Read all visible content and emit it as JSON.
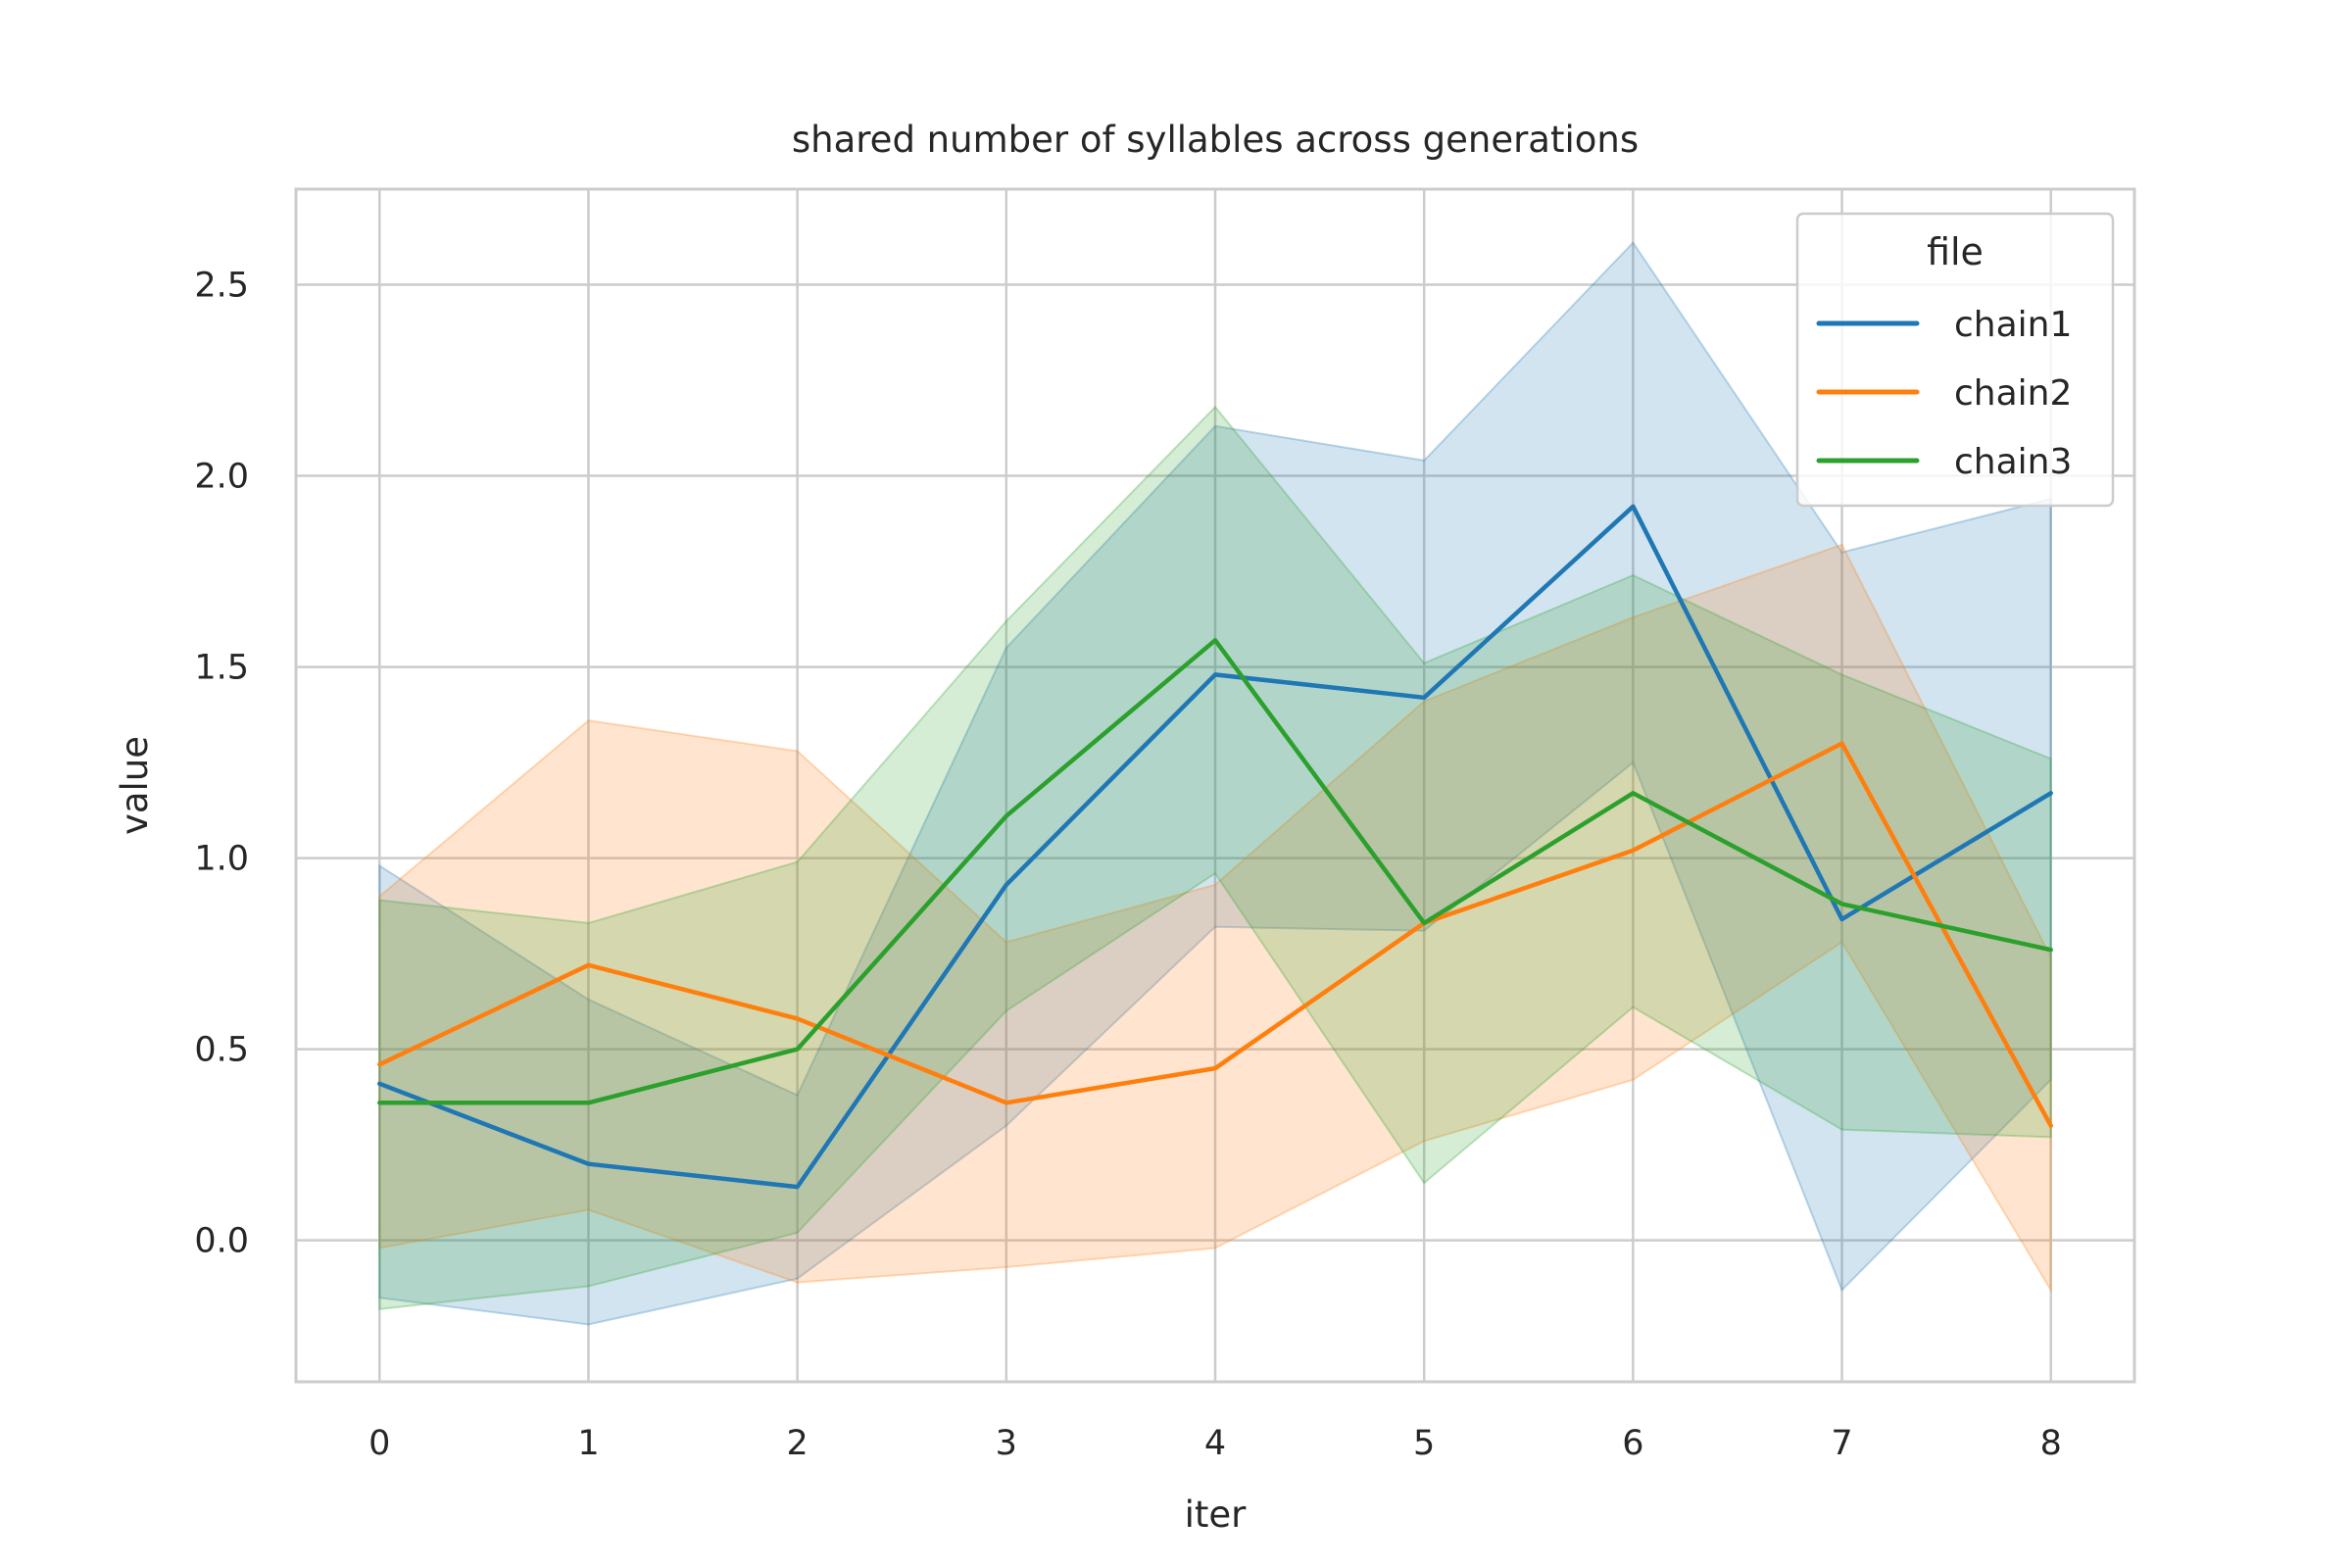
{
  "chart_data": {
    "type": "line",
    "title": "shared number of syllables across generations",
    "xlabel": "iter",
    "ylabel": "value",
    "x": [
      0,
      1,
      2,
      3,
      4,
      5,
      6,
      7,
      8
    ],
    "xticks": [
      "0",
      "1",
      "2",
      "3",
      "4",
      "5",
      "6",
      "7",
      "8"
    ],
    "yticks": [
      0.0,
      0.5,
      1.0,
      1.5,
      2.0,
      2.5
    ],
    "ytick_labels": [
      "0.0",
      "0.5",
      "1.0",
      "1.5",
      "2.0",
      "2.5"
    ],
    "xlim": [
      -0.4,
      8.4
    ],
    "ylim": [
      -0.37,
      2.75
    ],
    "grid": true,
    "legend": {
      "title": "file",
      "position": "upper right"
    },
    "series": [
      {
        "name": "chain1",
        "color": "#1f77b4",
        "values": [
          0.41,
          0.2,
          0.14,
          0.93,
          1.48,
          1.42,
          1.92,
          0.84,
          1.17
        ],
        "ci_lower": [
          -0.15,
          -0.22,
          -0.1,
          0.3,
          0.82,
          0.81,
          1.25,
          -0.13,
          0.42
        ],
        "ci_upper": [
          0.98,
          0.63,
          0.38,
          1.55,
          2.13,
          2.04,
          2.61,
          1.8,
          1.94
        ]
      },
      {
        "name": "chain2",
        "color": "#ff7f0e",
        "values": [
          0.46,
          0.72,
          0.58,
          0.36,
          0.45,
          0.83,
          1.02,
          1.3,
          0.3
        ],
        "ci_lower": [
          -0.02,
          0.08,
          -0.11,
          -0.07,
          -0.02,
          0.26,
          0.42,
          0.78,
          -0.13
        ],
        "ci_upper": [
          0.9,
          1.36,
          1.28,
          0.78,
          0.93,
          1.41,
          1.63,
          1.82,
          0.74
        ]
      },
      {
        "name": "chain3",
        "color": "#2ca02c",
        "values": [
          0.36,
          0.36,
          0.5,
          1.11,
          1.57,
          0.83,
          1.17,
          0.88,
          0.76
        ],
        "ci_lower": [
          -0.18,
          -0.12,
          0.02,
          0.6,
          0.96,
          0.15,
          0.61,
          0.29,
          0.27
        ],
        "ci_upper": [
          0.89,
          0.83,
          0.99,
          1.62,
          2.18,
          1.51,
          1.74,
          1.48,
          1.26
        ]
      }
    ]
  }
}
